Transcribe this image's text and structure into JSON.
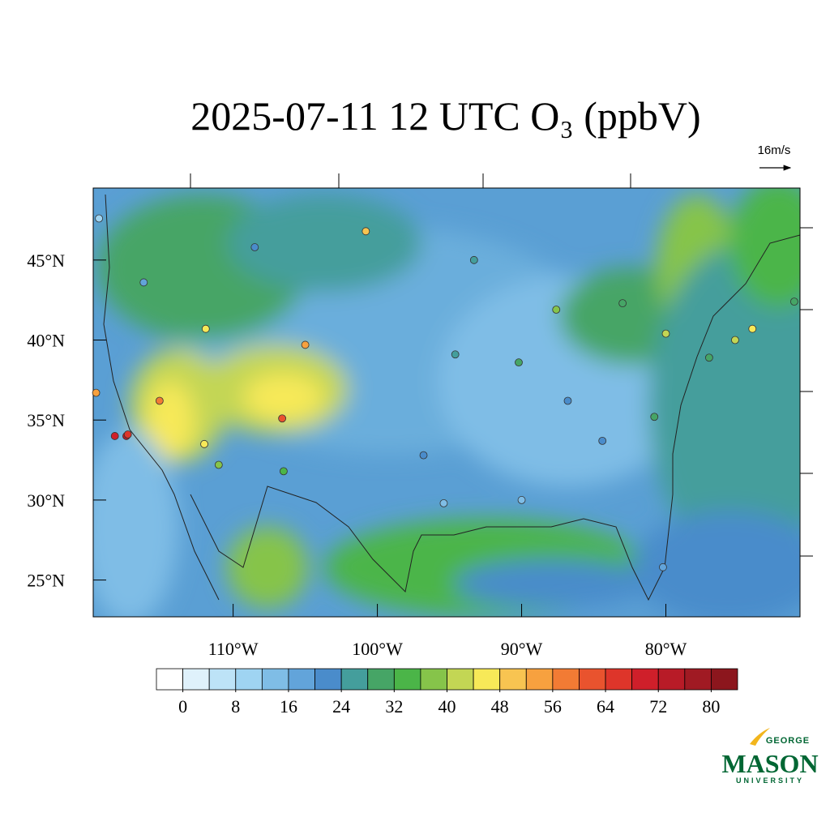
{
  "chart_data": {
    "type": "station-map",
    "title": "2025-07-11 12 UTC O₃ (ppbV)",
    "wind_scale_label": "16m/s",
    "xlim": [
      -119.7,
      -70.7
    ],
    "ylim": [
      22.7,
      49.5
    ],
    "xticks": [
      {
        "value": -110,
        "label": "110°W"
      },
      {
        "value": -100,
        "label": "100°W"
      },
      {
        "value": -90,
        "label": "90°W"
      },
      {
        "value": -80,
        "label": "80°W"
      }
    ],
    "yticks": [
      {
        "value": 45,
        "label": "45°N"
      },
      {
        "value": 40,
        "label": "40°N"
      },
      {
        "value": 35,
        "label": "35°N"
      },
      {
        "value": 30,
        "label": "30°N"
      },
      {
        "value": 25,
        "label": "25°N"
      }
    ],
    "colorbar": {
      "lim": [
        -4,
        84
      ],
      "ticks": [
        0,
        8,
        16,
        24,
        32,
        40,
        48,
        56,
        64,
        72,
        80
      ],
      "colors": [
        "#ffffff",
        "#dff1fb",
        "#bde3f7",
        "#9fd4f2",
        "#7fbde6",
        "#62a4da",
        "#4a8ccb",
        "#449e9c",
        "#46a566",
        "#4bb548",
        "#86c44a",
        "#c3d654",
        "#f7e958",
        "#f8c451",
        "#f7a13f",
        "#f27b34",
        "#e9532e",
        "#de352a",
        "#cf1f2a",
        "#b81b27",
        "#a01a23",
        "#8c161d"
      ]
    },
    "stations": {
      "lon": [
        -118.2,
        -117.4,
        -117.3,
        -119.5,
        -112.0,
        -115.1,
        -111.9,
        -105.0,
        -106.6,
        -96.8,
        -95.4,
        -90.0,
        -84.4,
        -80.2,
        -87.6,
        -83.0,
        -74.0,
        -75.2,
        -71.1,
        -77.0,
        -119.3,
        -93.3,
        -94.6,
        -90.2,
        -86.8,
        -80.8,
        -80.0,
        -116.2,
        -108.5,
        -100.8,
        -111.0,
        -106.5
      ],
      "lat": [
        34.0,
        34.0,
        34.1,
        36.7,
        33.5,
        36.2,
        40.7,
        39.7,
        35.1,
        32.8,
        29.8,
        30.0,
        33.7,
        25.8,
        41.9,
        42.3,
        40.7,
        40.0,
        42.4,
        38.9,
        47.6,
        45.0,
        39.1,
        38.6,
        36.2,
        35.2,
        40.4,
        43.6,
        45.8,
        46.8,
        32.2,
        31.8
      ],
      "values": [
        70,
        72,
        66,
        55,
        44,
        58,
        46,
        52,
        60,
        22,
        14,
        12,
        20,
        18,
        38,
        30,
        46,
        42,
        28,
        30,
        10,
        26,
        24,
        28,
        22,
        28,
        40,
        18,
        20,
        50,
        36,
        34
      ]
    },
    "logo": {
      "top": "GEORGE",
      "main": "MASON",
      "bottom": "UNIVERSITY"
    }
  }
}
